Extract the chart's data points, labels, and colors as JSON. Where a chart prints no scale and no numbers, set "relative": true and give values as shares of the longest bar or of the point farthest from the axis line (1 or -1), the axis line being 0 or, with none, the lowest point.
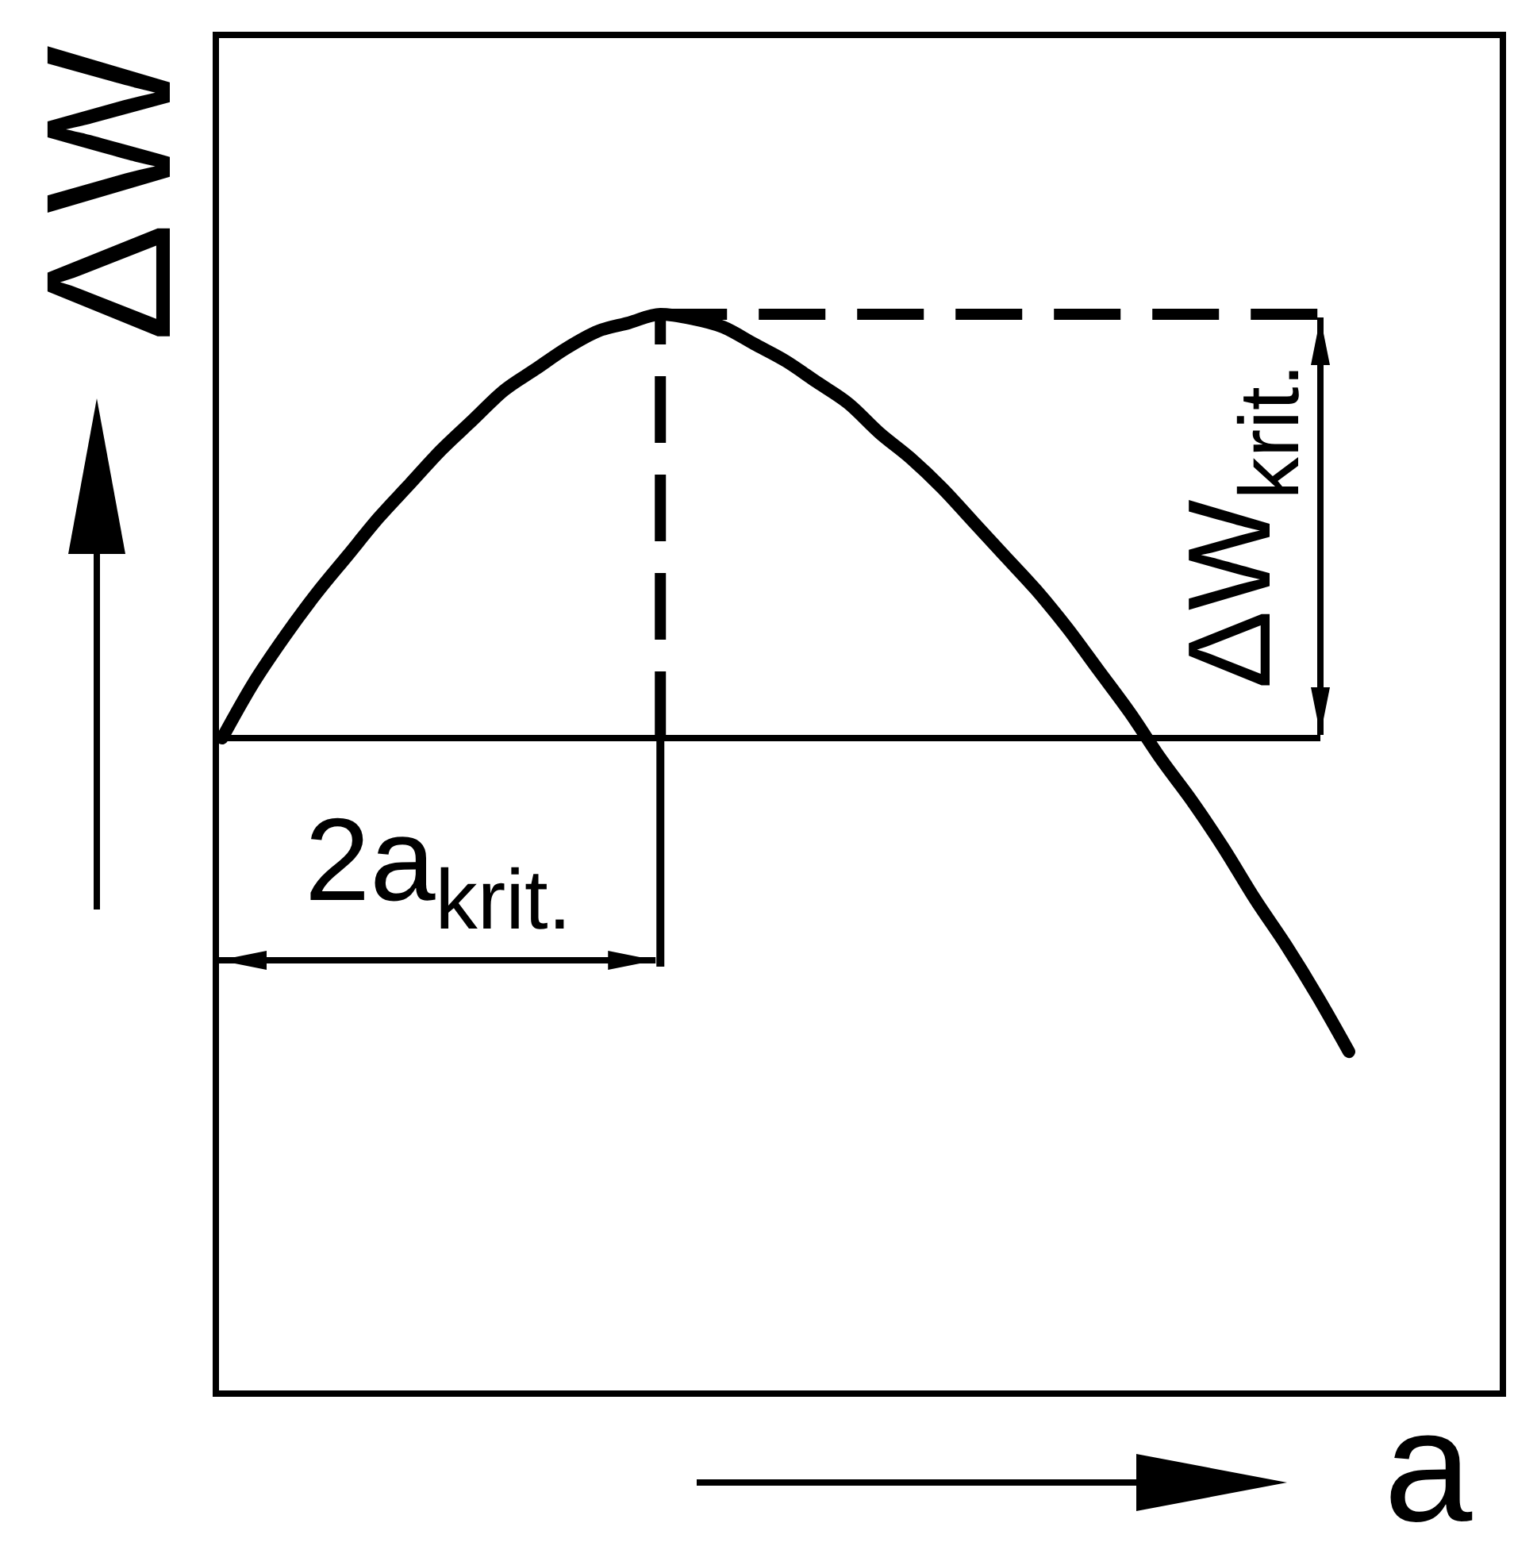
{
  "chart_data": {
    "type": "line",
    "xlabel": "a",
    "ylabel": "ΔW",
    "relative": true,
    "categories": [
      null,
      null,
      null,
      null,
      null,
      null,
      null,
      null,
      null,
      null,
      null,
      null,
      null,
      null,
      null,
      null,
      null,
      null,
      null,
      null,
      null,
      null,
      null,
      null,
      null,
      null,
      null,
      null,
      null,
      null,
      null,
      null,
      null,
      null,
      null,
      null,
      null
    ],
    "values": [
      0,
      0.13,
      0.24,
      0.34,
      0.43,
      0.52,
      0.6,
      0.68,
      0.75,
      0.82,
      0.87,
      0.92,
      0.96,
      0.98,
      1,
      0.99,
      0.97,
      0.93,
      0.89,
      0.84,
      0.79,
      0.72,
      0.66,
      0.59,
      0.51,
      0.43,
      0.35,
      0.26,
      0.16,
      0.06,
      -0.05,
      -0.15,
      -0.26,
      -0.38,
      -0.49,
      -0.61,
      -0.74
    ],
    "color": "#000000",
    "ref_lines": [
      {
        "axis": "y",
        "value": 1,
        "label": "ΔW$_{krit.}$",
        "line_style": "dashed"
      }
    ],
    "annotations": [
      "2a$_{krit.}$"
    ]
  }
}
